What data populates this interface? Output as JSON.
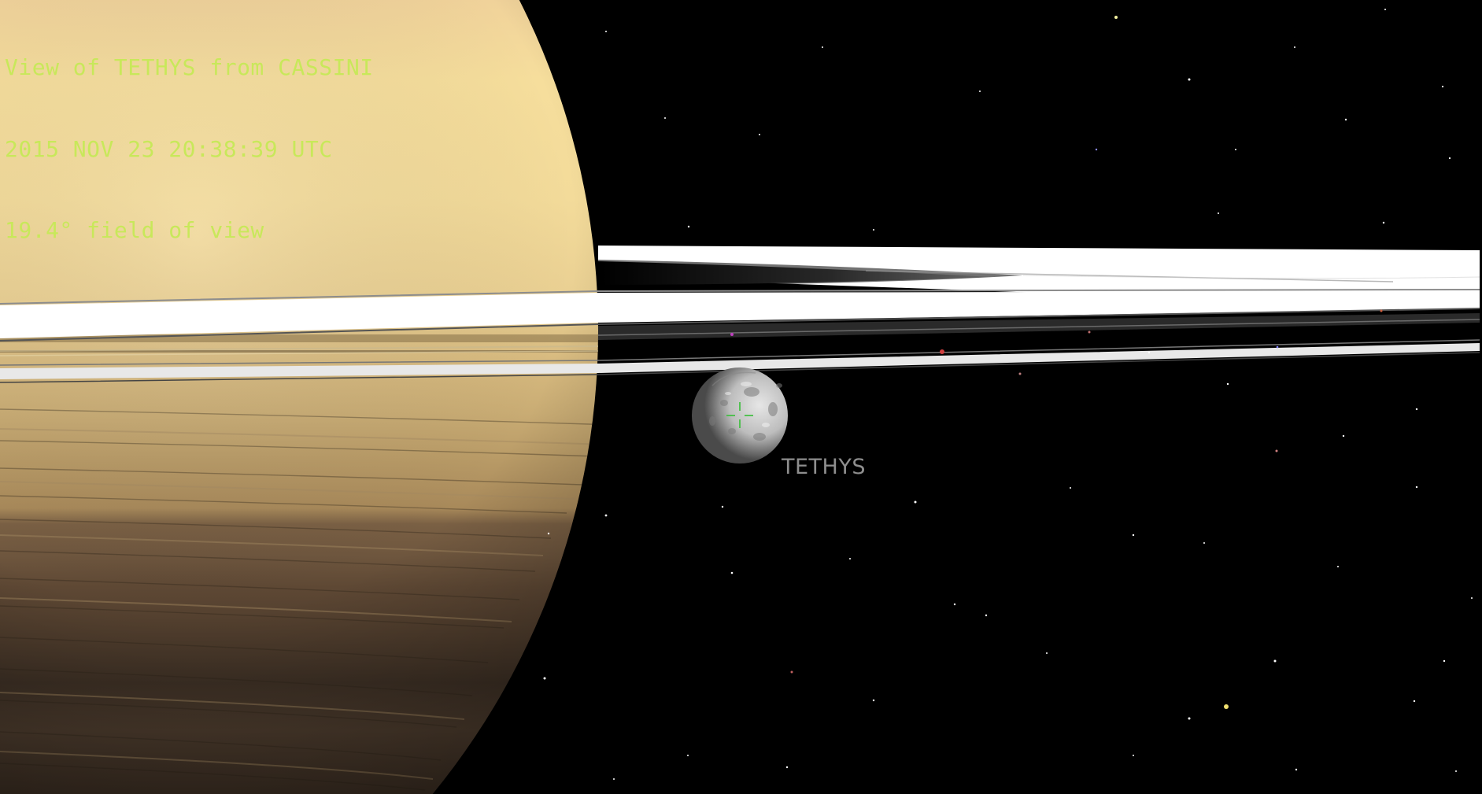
{
  "hud": {
    "line1": "View of TETHYS from CASSINI",
    "line2": "2015 NOV 23 20:38:39 UTC",
    "line3": "19.4° field of view"
  },
  "target": {
    "label": "TETHYS"
  },
  "colors": {
    "hud_text": "#c8e85a",
    "label_text": "#8e8e8e",
    "reticle": "#3fbf3f",
    "background": "#000000"
  }
}
